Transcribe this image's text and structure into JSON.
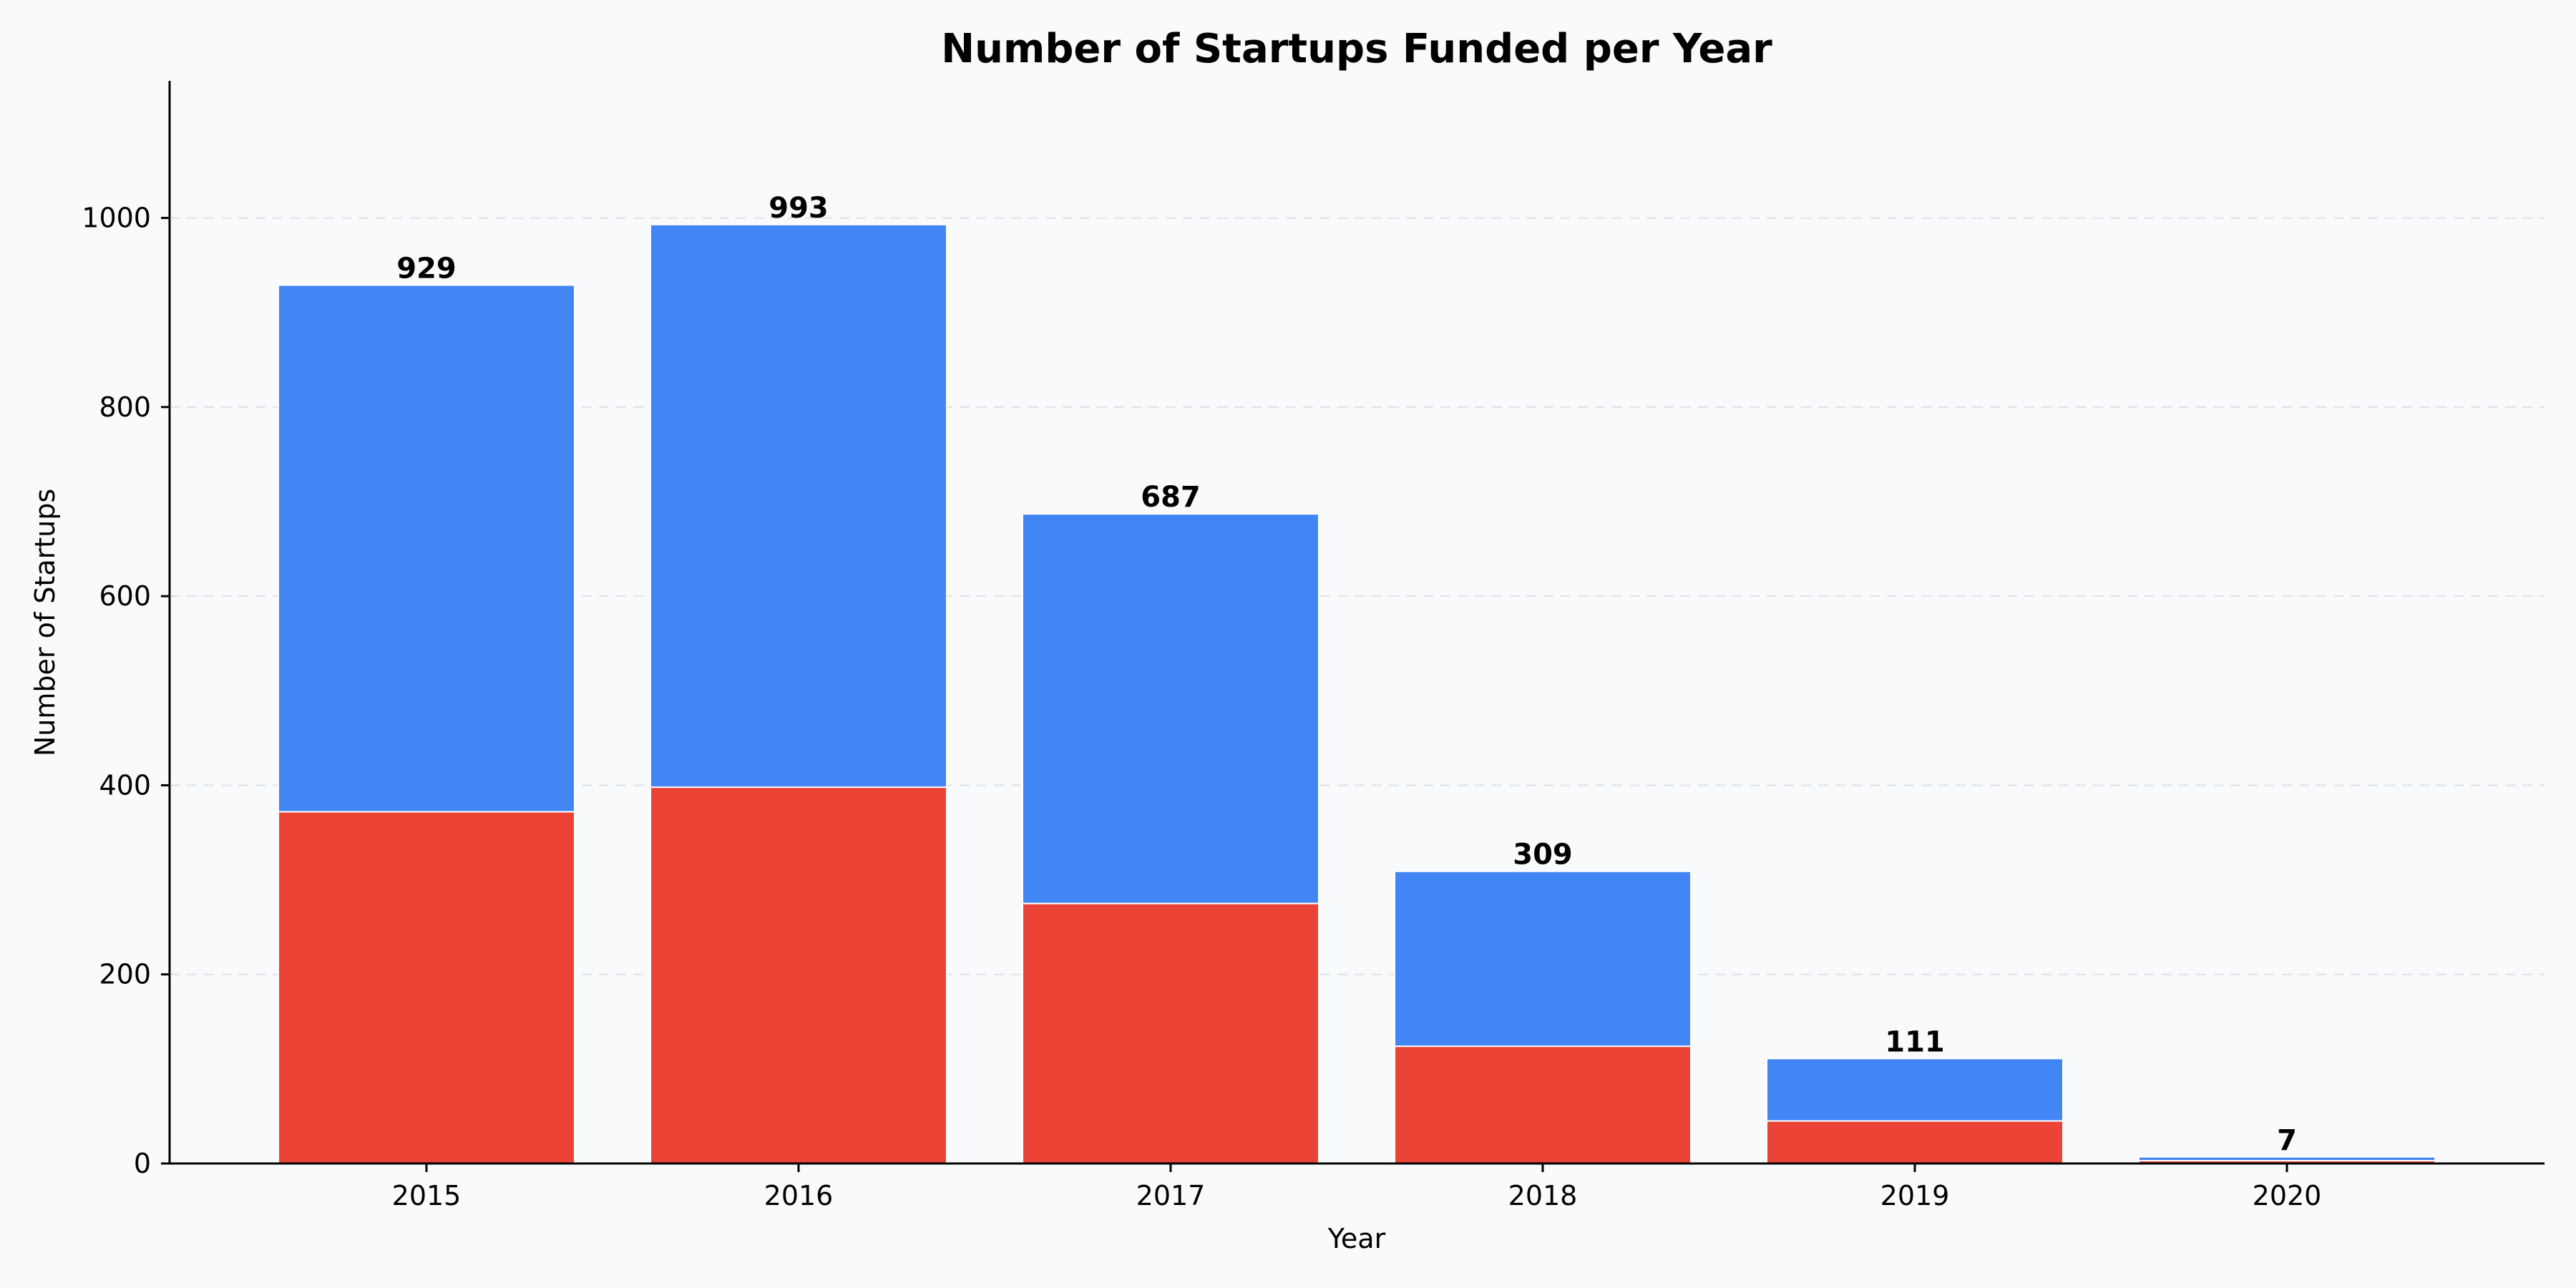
{
  "chart_data": {
    "type": "bar",
    "stacked": true,
    "title": "Number of Startups Funded per Year",
    "xlabel": "Year",
    "ylabel": "Number of Startups",
    "categories": [
      "2015",
      "2016",
      "2017",
      "2018",
      "2019",
      "2020"
    ],
    "series": [
      {
        "values": [
          372,
          398,
          275,
          124,
          45,
          3
        ],
        "color": "#ea4335"
      },
      {
        "values": [
          557,
          595,
          412,
          185,
          66,
          4
        ],
        "color": "#4285f4"
      }
    ],
    "totals": [
      "929",
      "993",
      "687",
      "309",
      "111",
      "7"
    ],
    "ylim": [
      0,
      1145
    ],
    "yticks": [
      0,
      200,
      400,
      600,
      800,
      1000
    ],
    "ytick_labels": [
      "0",
      "200",
      "400",
      "600",
      "800",
      "1000"
    ],
    "grid": true,
    "background_color": "#f8fafc"
  }
}
